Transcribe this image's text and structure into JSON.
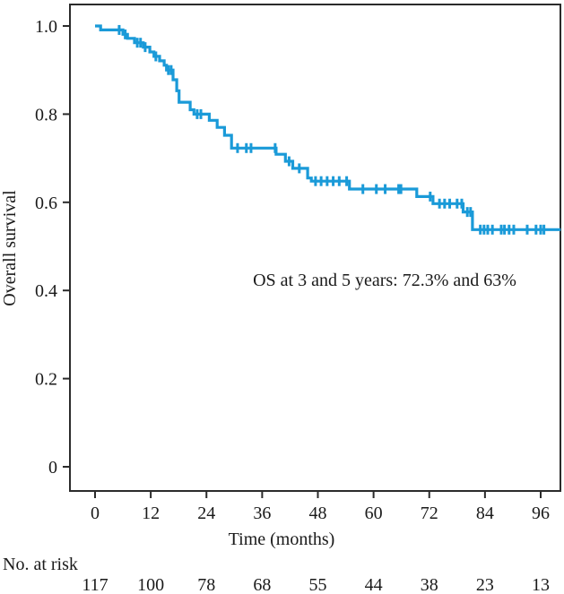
{
  "chart_data": {
    "type": "line",
    "subtype": "kaplan-meier-step",
    "title": "",
    "xlabel": "Time (months)",
    "ylabel": "Overall survival",
    "annotation": "OS at 3 and 5 years: 72.3% and 63%",
    "xlim": [
      0,
      100
    ],
    "ylim": [
      0,
      1.0
    ],
    "grid": false,
    "legend": "none",
    "x_ticks": [
      0,
      12,
      24,
      36,
      48,
      60,
      72,
      84,
      96
    ],
    "y_ticks": [
      {
        "value": 1.0,
        "label": "1.0"
      },
      {
        "value": 0.8,
        "label": "0.8"
      },
      {
        "value": 0.6,
        "label": "0.6"
      },
      {
        "value": 0.4,
        "label": "0.4"
      },
      {
        "value": 0.2,
        "label": "0.2"
      },
      {
        "value": 0.0,
        "label": "0"
      }
    ],
    "series": [
      {
        "name": "Overall survival",
        "color": "#1a9ad8",
        "end_time": 100.3,
        "steps": [
          [
            0.0,
            1.0
          ],
          [
            1.2,
            0.991
          ],
          [
            6.0,
            0.981
          ],
          [
            7.0,
            0.972
          ],
          [
            8.5,
            0.962
          ],
          [
            10.4,
            0.952
          ],
          [
            11.8,
            0.941
          ],
          [
            12.7,
            0.931
          ],
          [
            13.9,
            0.921
          ],
          [
            14.9,
            0.911
          ],
          [
            15.4,
            0.9
          ],
          [
            16.8,
            0.878
          ],
          [
            17.6,
            0.853
          ],
          [
            18.1,
            0.827
          ],
          [
            20.5,
            0.81
          ],
          [
            21.3,
            0.8
          ],
          [
            24.6,
            0.786
          ],
          [
            26.3,
            0.77
          ],
          [
            27.9,
            0.752
          ],
          [
            29.4,
            0.723
          ],
          [
            39.0,
            0.709
          ],
          [
            41.0,
            0.693
          ],
          [
            42.6,
            0.677
          ],
          [
            45.8,
            0.655
          ],
          [
            46.6,
            0.648
          ],
          [
            54.8,
            0.63
          ],
          [
            69.3,
            0.613
          ],
          [
            72.8,
            0.597
          ],
          [
            79.3,
            0.578
          ],
          [
            81.3,
            0.538
          ]
        ],
        "censor_times": [
          5.2,
          6.5,
          9.1,
          9.8,
          10.8,
          13.1,
          15.8,
          16.4,
          22.0,
          22.8,
          30.7,
          32.6,
          33.6,
          38.8,
          41.8,
          44.0,
          47.5,
          48.7,
          50.0,
          51.3,
          52.6,
          54.2,
          57.7,
          60.6,
          62.5,
          65.4,
          65.9,
          72.2,
          74.2,
          75.3,
          76.4,
          78.0,
          79.0,
          80.2,
          80.9,
          83.0,
          83.8,
          84.6,
          85.6,
          87.5,
          88.2,
          89.2,
          90.2,
          93.1,
          95.0,
          96.0,
          96.7
        ]
      }
    ]
  },
  "risk_table": {
    "title": "No. at risk",
    "times": [
      0,
      12,
      24,
      36,
      48,
      60,
      72,
      84,
      96
    ],
    "counts": [
      "117",
      "100",
      "78",
      "68",
      "55",
      "44",
      "38",
      "23",
      "13"
    ]
  }
}
